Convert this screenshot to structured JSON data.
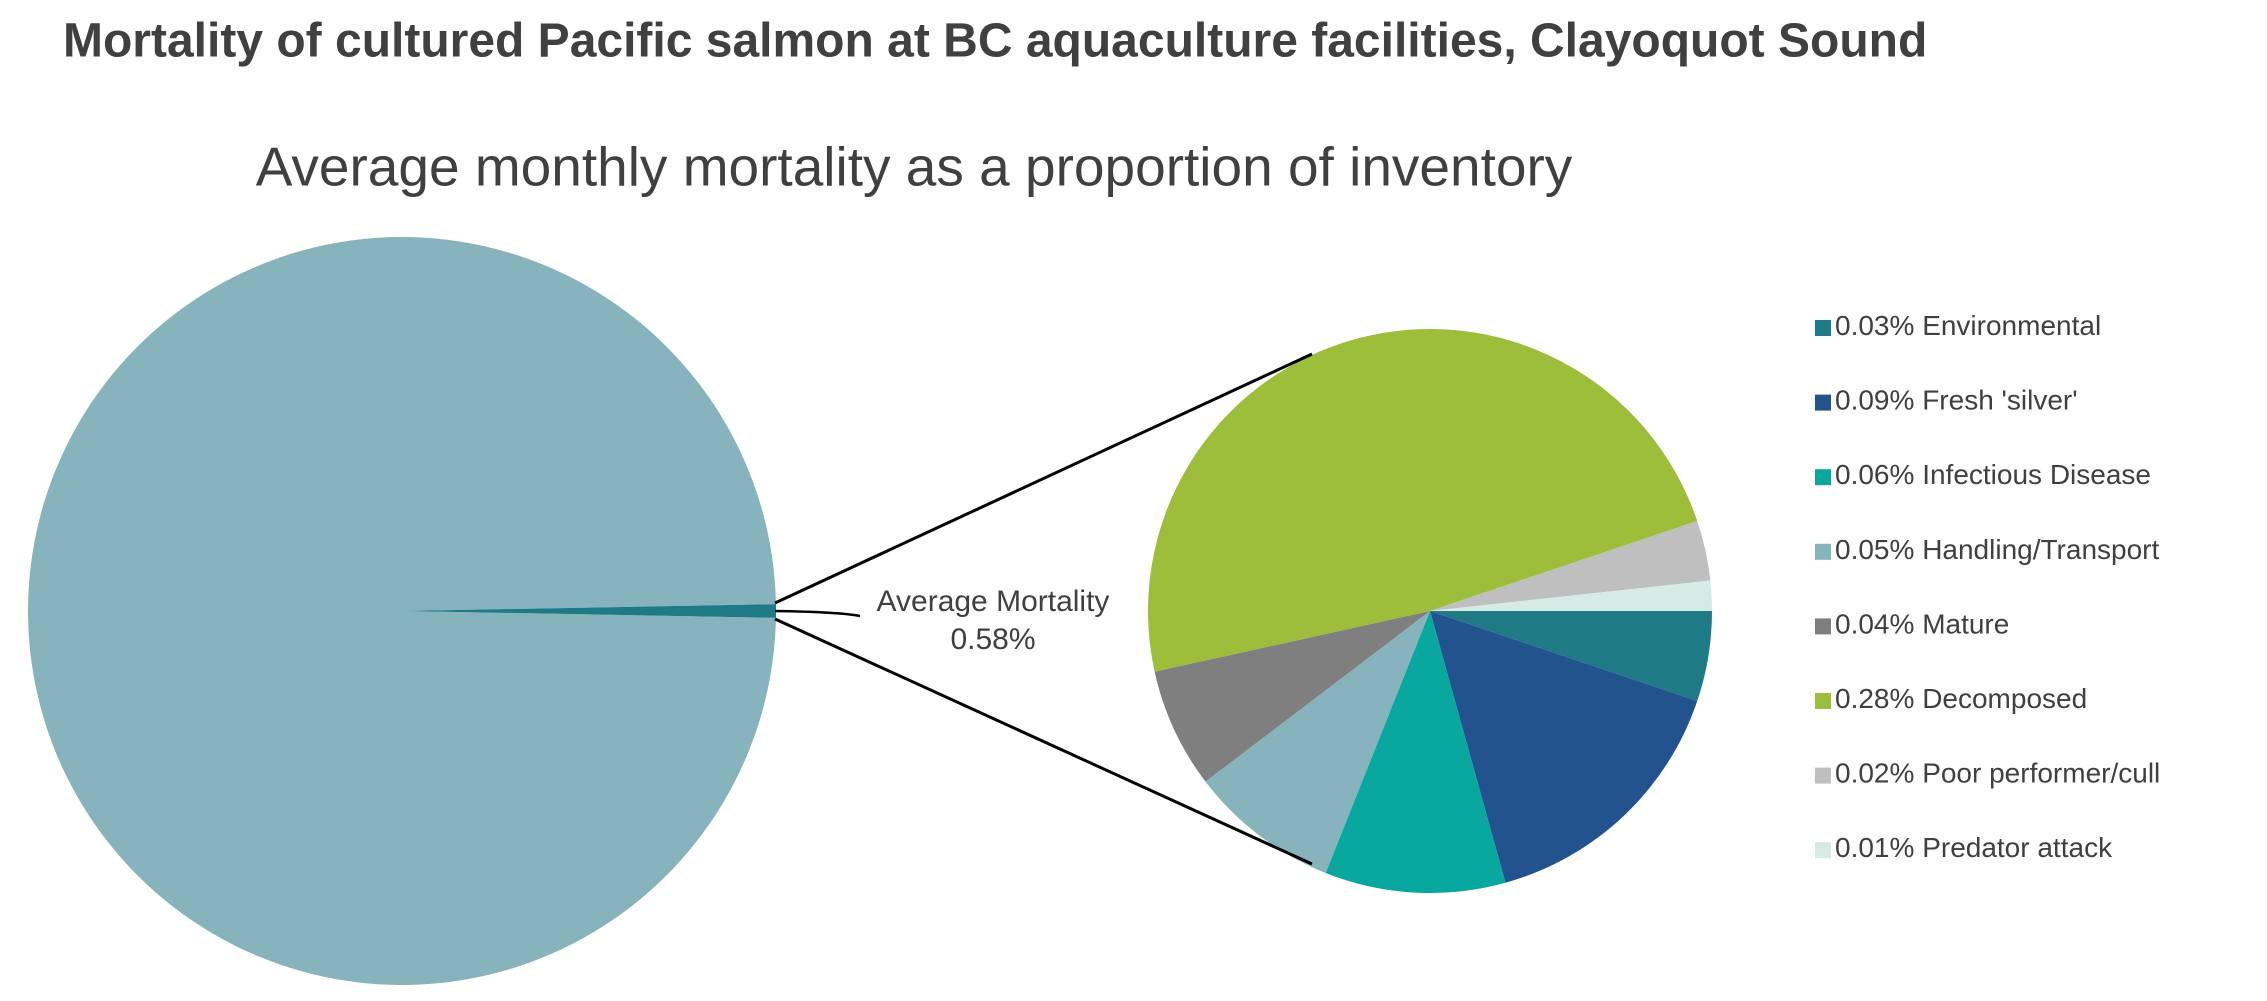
{
  "chart_data": {
    "type": "pie-of-pie",
    "title": "Mortality of cultured Pacific salmon at BC aquaculture facilities, Clayoquot Sound",
    "subtitle": "Average monthly mortality as a proportion of inventory",
    "main": {
      "categories": [
        null,
        "Average Mortality"
      ],
      "values": [
        99.42,
        0.58
      ],
      "value_labels": [
        null,
        "0.58%"
      ],
      "colors": [
        "#86b3bc",
        "#1e7b85"
      ]
    },
    "detail": {
      "categories": [
        "Environmental",
        "Fresh 'silver'",
        "Infectious Disease",
        "Handling/Transport",
        "Mature",
        "Decomposed",
        "Poor performer/cull",
        "Predator attack"
      ],
      "values": [
        0.03,
        0.09,
        0.06,
        0.05,
        0.04,
        0.28,
        0.02,
        0.01
      ],
      "value_labels": [
        "0.03%",
        "0.09%",
        "0.06%",
        "0.05%",
        "0.04%",
        "0.28%",
        "0.02%",
        "0.01%"
      ],
      "colors": [
        "#1e7b85",
        "#23538f",
        "#09a89f",
        "#86b3bc",
        "#7f7f7f",
        "#9dbe3b",
        "#bfbfbf",
        "#d6ebe6"
      ]
    },
    "legend": "right"
  }
}
